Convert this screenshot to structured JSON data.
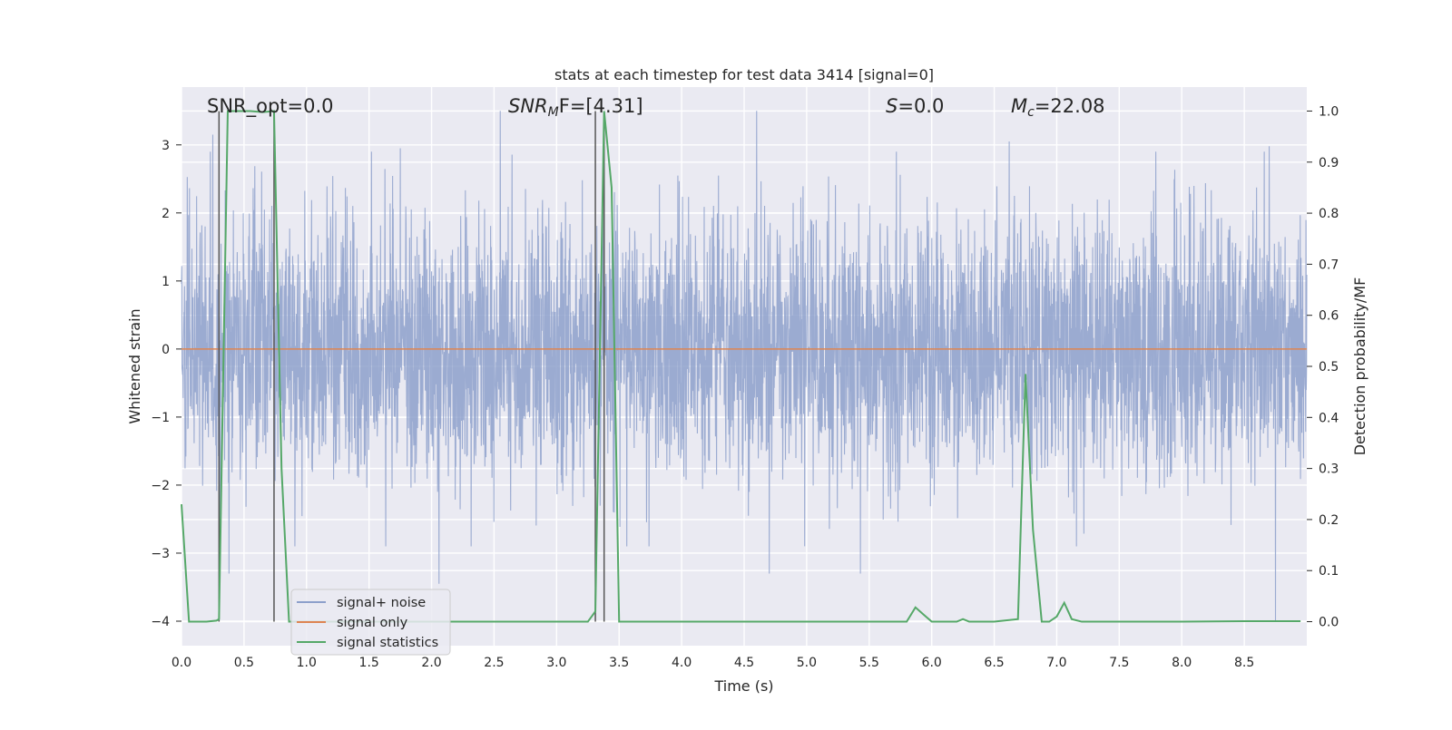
{
  "chart_data": {
    "type": "line",
    "title": "stats at each timestep for test data 3414 [signal=0]",
    "xlabel": "Time (s)",
    "ylabel_left": "Whitened strain",
    "ylabel_right": "Detection probability/MF",
    "xlim": [
      0.0,
      9.0
    ],
    "ylim_left": [
      -4.36,
      3.85
    ],
    "ylim_right": [
      -0.047,
      1.047
    ],
    "xticks": [
      "0.0",
      "0.5",
      "1.0",
      "1.5",
      "2.0",
      "2.5",
      "3.0",
      "3.5",
      "4.0",
      "4.5",
      "5.0",
      "5.5",
      "6.0",
      "6.5",
      "7.0",
      "7.5",
      "8.0",
      "8.5"
    ],
    "yticks_left": [
      "3",
      "2",
      "1",
      "0",
      "−1",
      "−2",
      "−3",
      "−4"
    ],
    "yticks_right": [
      "1.0",
      "0.9",
      "0.8",
      "0.7",
      "0.6",
      "0.5",
      "0.4",
      "0.3",
      "0.2",
      "0.1",
      "0.0"
    ],
    "grid": true,
    "annotations": {
      "snr_opt": "SNR_opt=0.0",
      "snr_mf_prefix": "SNR",
      "snr_mf_sub": "M",
      "snr_mf_suffix": "F=[4.31]",
      "s_prefix": "S",
      "s_suffix": "=0.0",
      "mc_prefix": "M",
      "mc_sub": "c",
      "mc_suffix": "=22.08"
    },
    "marker_lines_x": [
      0.3,
      0.74,
      3.31,
      3.38
    ],
    "legend": {
      "position": "lower-left",
      "entries": [
        "signal+ noise",
        "signal only",
        "signal statistics"
      ]
    },
    "series": [
      {
        "name": "signal+ noise",
        "color": "#8da0cb",
        "description": "whitened strain noise, approx 4100 samples over 0-9 s, amplitude up to about +/-3.4",
        "peaks": [
          {
            "x": 0.25,
            "y": 3.15
          },
          {
            "x": 0.31,
            "y": -2.9
          },
          {
            "x": 0.38,
            "y": -3.3
          },
          {
            "x": 1.75,
            "y": 2.95
          },
          {
            "x": 2.06,
            "y": -3.45
          },
          {
            "x": 2.55,
            "y": 3.5
          },
          {
            "x": 3.38,
            "y": 3.35
          },
          {
            "x": 4.6,
            "y": 3.5
          },
          {
            "x": 4.7,
            "y": -3.3
          },
          {
            "x": 5.43,
            "y": -3.3
          },
          {
            "x": 6.62,
            "y": 3.05
          },
          {
            "x": 8.7,
            "y": 2.98
          },
          {
            "x": 8.75,
            "y": -4.0
          }
        ]
      },
      {
        "name": "signal only",
        "color": "#dd8452",
        "x": [
          0.0,
          9.0
        ],
        "y": [
          0.0,
          0.0
        ]
      },
      {
        "name": "signal statistics",
        "color": "#55a868",
        "axis": "right",
        "x": [
          0.0,
          0.06,
          0.12,
          0.2,
          0.28,
          0.3,
          0.37,
          0.45,
          0.55,
          0.65,
          0.74,
          0.8,
          0.86,
          0.9,
          1.0,
          1.5,
          2.0,
          2.5,
          3.0,
          3.25,
          3.31,
          3.38,
          3.44,
          3.5,
          4.0,
          4.5,
          5.0,
          5.5,
          5.8,
          5.87,
          5.93,
          6.0,
          6.2,
          6.25,
          6.3,
          6.5,
          6.69,
          6.75,
          6.81,
          6.88,
          6.94,
          7.0,
          7.06,
          7.12,
          7.2,
          8.0,
          8.5,
          8.95
        ],
        "y": [
          0.23,
          0.0,
          0.0,
          0.0,
          0.002,
          0.005,
          1.0,
          1.0,
          1.0,
          0.998,
          1.0,
          0.3,
          0.0,
          0.0,
          0.0,
          0.0,
          0.0,
          0.0,
          0.0,
          0.0,
          0.02,
          1.0,
          0.85,
          0.0,
          0.0,
          0.0,
          0.0,
          0.0,
          0.0,
          0.028,
          0.015,
          0.0,
          0.0,
          0.005,
          0.0,
          0.0,
          0.005,
          0.485,
          0.18,
          0.0,
          0.0,
          0.01,
          0.037,
          0.005,
          0.0,
          0.0,
          0.001,
          0.001
        ]
      }
    ]
  }
}
